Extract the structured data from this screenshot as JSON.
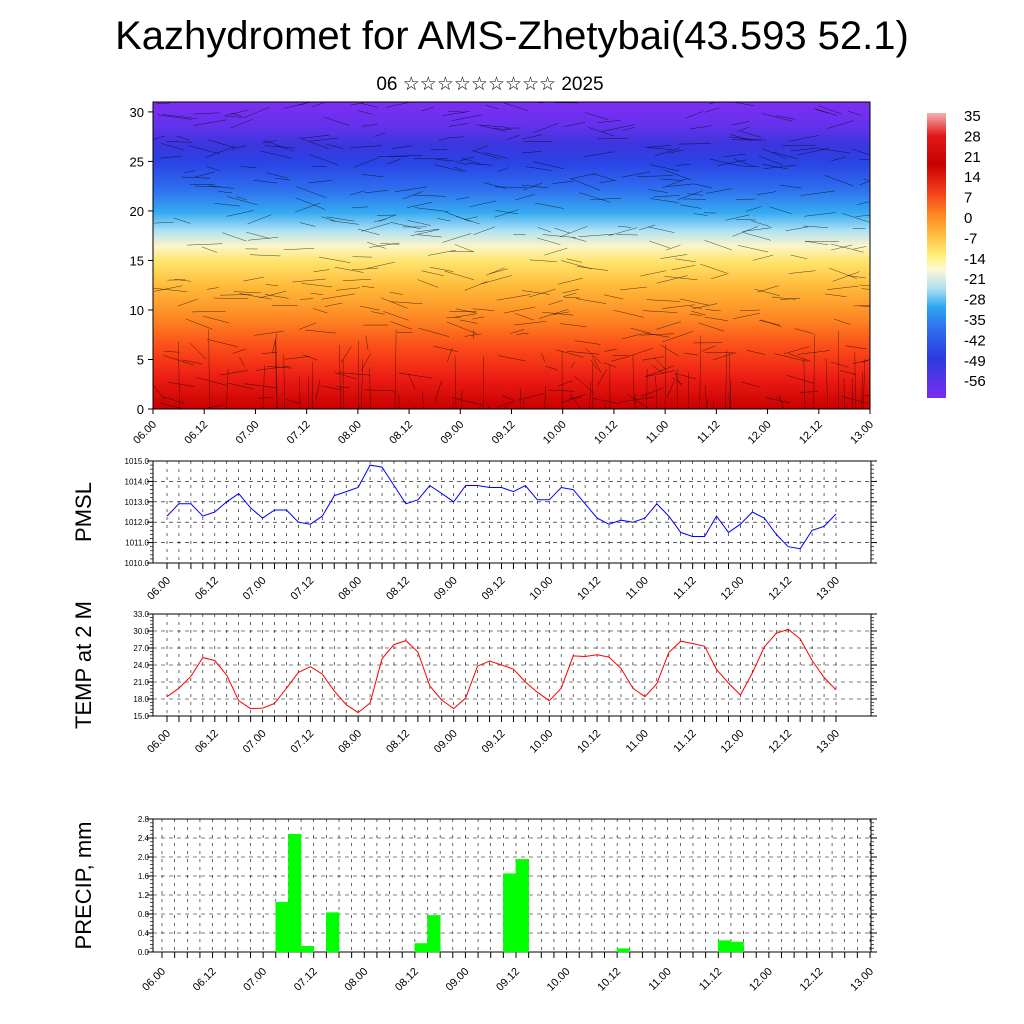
{
  "title": "Kazhydromet for AMS-Zhetybai(43.593 52.1)",
  "subtitle": "06 ☆☆☆☆☆☆☆☆☆ 2025",
  "time_labels": [
    "06.00",
    "06.12",
    "07.00",
    "07.12",
    "08.00",
    "08.12",
    "09.00",
    "09.12",
    "10.00",
    "10.12",
    "11.00",
    "11.12",
    "12.00",
    "12.12",
    "13.00"
  ],
  "colorbar": {
    "labels": [
      "35",
      "28",
      "21",
      "14",
      "7",
      "0",
      "-7",
      "-14",
      "-21",
      "-28",
      "-35",
      "-42",
      "-49",
      "-56"
    ]
  },
  "chart_data": [
    {
      "type": "heatmap",
      "description_key": "cross_section",
      "y_ticks": [
        0,
        5,
        10,
        15,
        20,
        25,
        30
      ],
      "ylim": [
        0,
        31
      ],
      "x_categories_ref": "time_labels",
      "value_range": [
        -60,
        38
      ]
    },
    {
      "type": "line",
      "ylabel": "PMSL",
      "ylim": [
        1010.0,
        1015.0
      ],
      "y_ticks": [
        "1010.0",
        "1011.0",
        "1012.0",
        "1013.0",
        "1014.0",
        "1015.0"
      ],
      "color": "#0000ff",
      "x_start_hours": 0,
      "x_step_hours": 3,
      "values": [
        1012.3,
        1012.9,
        1012.9,
        1012.3,
        1012.5,
        1013.0,
        1013.4,
        1012.7,
        1012.2,
        1012.6,
        1012.6,
        1012.0,
        1011.9,
        1012.3,
        1013.3,
        1013.5,
        1013.7,
        1014.8,
        1014.7,
        1013.8,
        1012.9,
        1013.1,
        1013.8,
        1013.4,
        1013.0,
        1013.8,
        1013.8,
        1013.7,
        1013.7,
        1013.5,
        1013.8,
        1013.1,
        1013.1,
        1013.7,
        1013.6,
        1012.9,
        1012.2,
        1011.9,
        1012.1,
        1012.0,
        1012.2,
        1012.9,
        1012.3,
        1011.5,
        1011.3,
        1011.3,
        1012.3,
        1011.5,
        1011.9,
        1012.5,
        1012.2,
        1011.4,
        1010.8,
        1010.7,
        1011.6,
        1011.8,
        1012.4
      ]
    },
    {
      "type": "line",
      "ylabel": "TEMP at 2 M",
      "ylim": [
        15.0,
        33.0
      ],
      "y_ticks": [
        "15.0",
        "18.0",
        "21.0",
        "24.0",
        "27.0",
        "30.0",
        "33.0"
      ],
      "color": "#ff0000",
      "x_start_hours": 0,
      "x_step_hours": 3,
      "values": [
        18.4,
        19.9,
        22.0,
        25.3,
        24.8,
        22.2,
        17.7,
        16.3,
        16.4,
        17.2,
        19.9,
        22.7,
        23.7,
        22.4,
        19.4,
        17.0,
        15.6,
        17.3,
        25.1,
        27.6,
        28.3,
        26.3,
        20.3,
        17.8,
        16.3,
        18.2,
        23.8,
        24.7,
        24.0,
        23.3,
        21.0,
        19.2,
        17.7,
        19.9,
        25.6,
        25.5,
        25.8,
        25.4,
        23.4,
        19.9,
        18.4,
        20.7,
        26.2,
        28.2,
        27.8,
        27.3,
        23.2,
        20.8,
        18.7,
        22.6,
        27.2,
        29.6,
        30.3,
        28.6,
        24.8,
        21.8,
        19.6
      ]
    },
    {
      "type": "bar",
      "ylabel": "PRECIP, mm",
      "ylim": [
        0.0,
        2.8
      ],
      "y_ticks": [
        "0.0",
        "0.4",
        "0.8",
        "1.2",
        "1.6",
        "2.0",
        "2.4",
        "2.8"
      ],
      "color": "#00ff00",
      "x_step_hours": 3,
      "bars": [
        {
          "start_hour": 27,
          "value": 1.05
        },
        {
          "start_hour": 30,
          "value": 2.48
        },
        {
          "start_hour": 33,
          "value": 0.12
        },
        {
          "start_hour": 39,
          "value": 0.83
        },
        {
          "start_hour": 60,
          "value": 0.18
        },
        {
          "start_hour": 63,
          "value": 0.77
        },
        {
          "start_hour": 81,
          "value": 1.65
        },
        {
          "start_hour": 84,
          "value": 1.95
        },
        {
          "start_hour": 108,
          "value": 0.07
        },
        {
          "start_hour": 132,
          "value": 0.24
        },
        {
          "start_hour": 135,
          "value": 0.21
        }
      ]
    }
  ]
}
